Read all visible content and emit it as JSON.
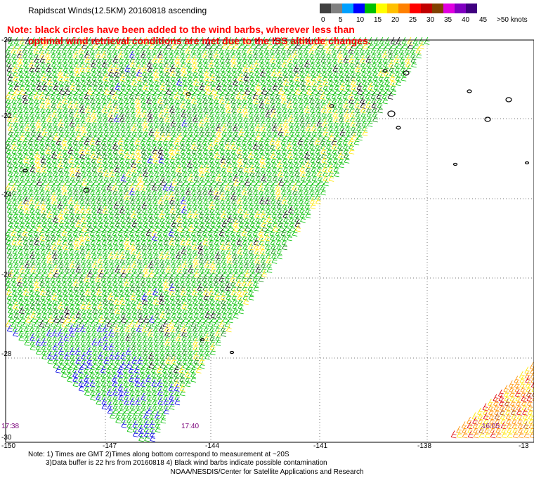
{
  "title": "Rapidscat Winds(12.5KM) 20160818 ascending",
  "note": {
    "line1": "Note: black circles have been added to the wind barbs, wherever less than",
    "line2": "optimal wind retrieval conditions are met due to the ISS altitude changes."
  },
  "legend": {
    "colors": [
      "#404040",
      "#808080",
      "#00a0ff",
      "#0000ff",
      "#00c000",
      "#ffff00",
      "#ffc000",
      "#ff8000",
      "#ff0000",
      "#c00000",
      "#804000",
      "#e000e0",
      "#8000c0",
      "#400080"
    ],
    "labels": [
      "0",
      "5",
      "10",
      "15",
      "20",
      "25",
      "30",
      "35",
      "40",
      "45",
      ">50 knots"
    ],
    "label_offsets": [
      0,
      25,
      50,
      75,
      100,
      125,
      150,
      175,
      200,
      225,
      250
    ]
  },
  "lon_labels": [
    "-150",
    "-147",
    "-144",
    "-141",
    "-138",
    "-13"
  ],
  "lat_labels": [
    "-20",
    "-22",
    "-24",
    "-26",
    "-28",
    "-30"
  ],
  "times": {
    "left": "17:38",
    "mid": "17:40",
    "right": "16:05"
  },
  "footer": {
    "line1": "Note: 1) Times are GMT 2)Times along bottom correspond to measurement at ~20S",
    "line2": "3)Data buffer is 22 hrs from 20160818 4) Black wind barbs indicate possible contamination"
  },
  "credit": "NOAA/NESDIS/Center for Satellite Applications and Research"
}
